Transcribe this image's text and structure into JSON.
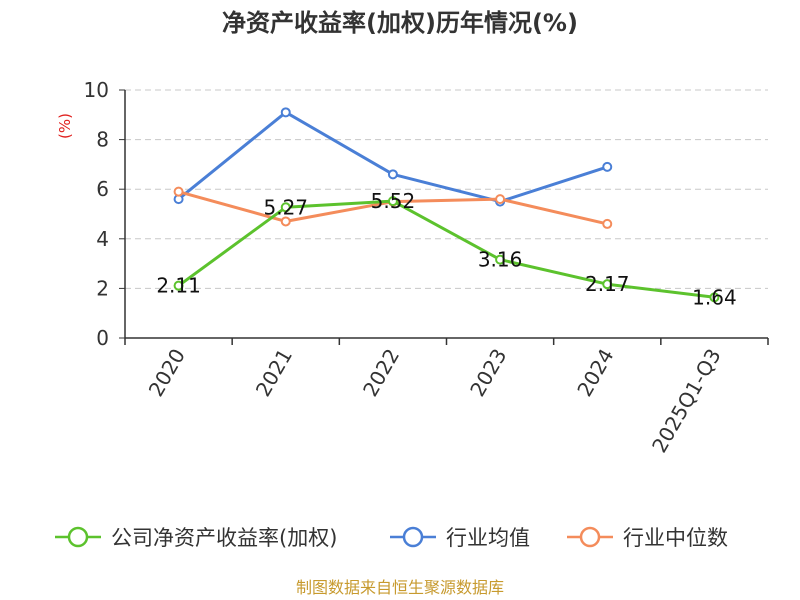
{
  "chart_data": {
    "type": "line",
    "title": "净资产收益率(加权)历年情况(%)",
    "ylabel": "(%)",
    "ylim": [
      0,
      10
    ],
    "yticks": [
      0,
      2,
      4,
      6,
      8,
      10
    ],
    "grid": true,
    "legend_position": "bottom",
    "categories": [
      "2020",
      "2021",
      "2022",
      "2023",
      "2024",
      "2025Q1-Q3"
    ],
    "series": [
      {
        "name": "公司净资产收益率(加权)",
        "color": "#5cc22d",
        "values": [
          2.11,
          5.27,
          5.52,
          3.16,
          2.17,
          1.64
        ],
        "labels": [
          "2.11",
          "5.27",
          "5.52",
          "3.16",
          "2.17",
          "1.64"
        ]
      },
      {
        "name": "行业均值",
        "color": "#4a7fd6",
        "values": [
          5.6,
          9.1,
          6.6,
          5.5,
          6.9,
          null
        ]
      },
      {
        "name": "行业中位数",
        "color": "#f48c5b",
        "values": [
          5.9,
          4.7,
          5.5,
          5.6,
          4.6,
          null
        ]
      }
    ]
  },
  "source_text": "制图数据来自恒生聚源数据库"
}
